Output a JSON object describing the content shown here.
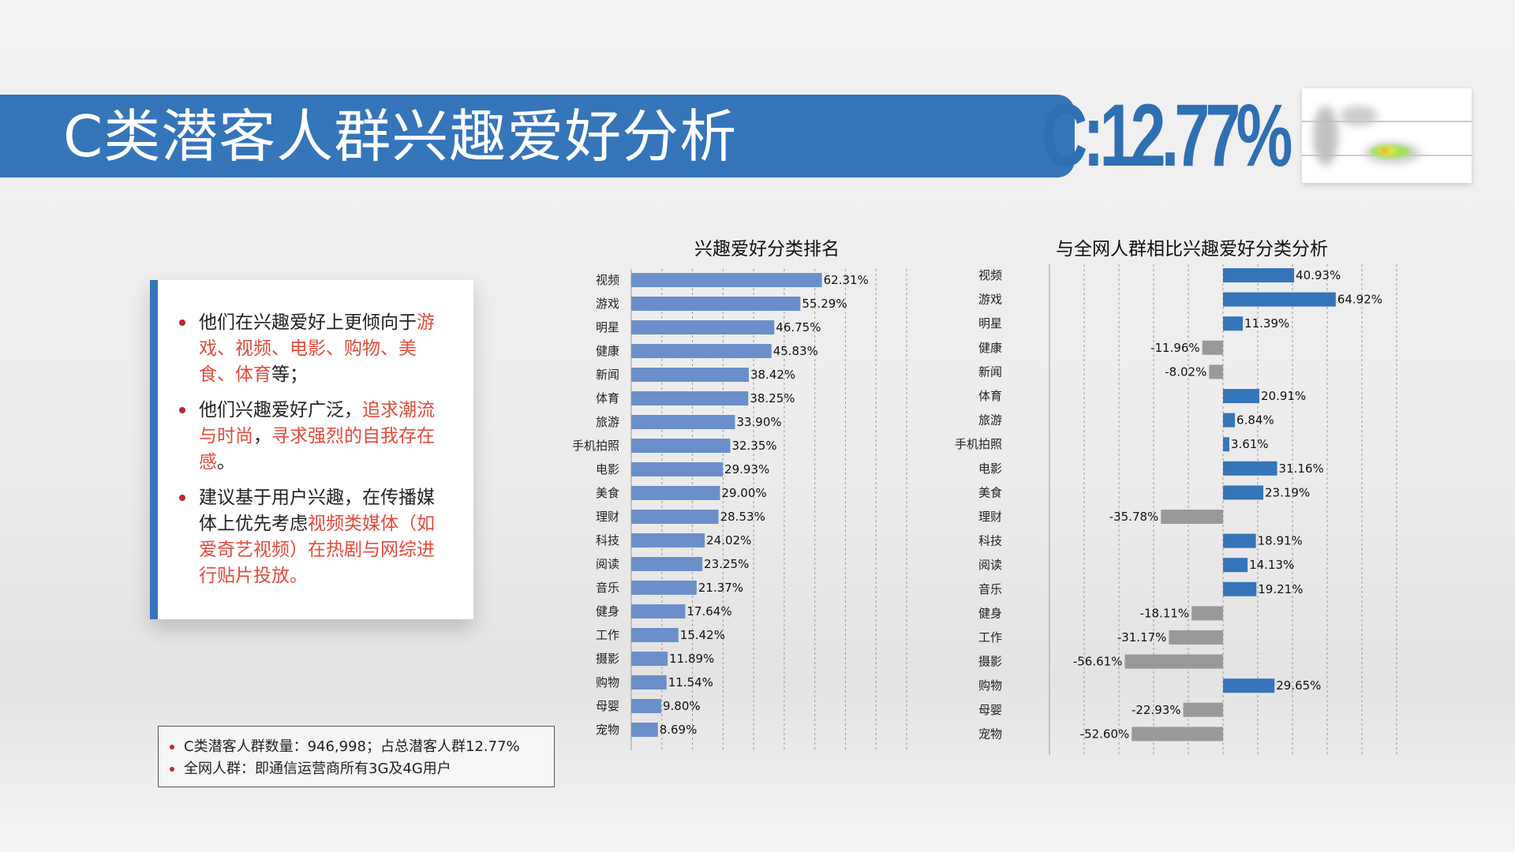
{
  "header": {
    "title": "C类潜客人群兴趣爱好分析",
    "stat": "C:12.77%"
  },
  "panel": {
    "bullets": [
      {
        "segments": [
          {
            "text": "他们在兴趣爱好上更倾向于",
            "color": "#222222"
          },
          {
            "text": "游戏、视频、电影、购物、美食、体育",
            "color": "#e04b3c"
          },
          {
            "text": "等；",
            "color": "#222222"
          }
        ]
      },
      {
        "segments": [
          {
            "text": "他们兴趣爱好广泛，",
            "color": "#222222"
          },
          {
            "text": "追求潮流与时尚",
            "color": "#e04b3c"
          },
          {
            "text": "，",
            "color": "#222222"
          },
          {
            "text": "寻求强烈的自我存在感",
            "color": "#e04b3c"
          },
          {
            "text": "。",
            "color": "#222222"
          }
        ]
      },
      {
        "segments": [
          {
            "text": "建议基于用户兴趣，在传播媒体上优先考虑",
            "color": "#222222"
          },
          {
            "text": "视频类媒体（如爱奇艺视频）在热剧与网综进行贴片投放。",
            "color": "#e04b3c"
          }
        ]
      }
    ]
  },
  "notes": [
    "C类潜客人群数量：946,998；占总潜客人群12.77%",
    "全网人群：即通信运营商所有3G及4G用户"
  ],
  "colors": {
    "brand_blue": "#3575b9",
    "bar_blue": "#6b8fca",
    "bar_blue2": "#3575b9",
    "bar_gray": "#999999",
    "accent_red": "#e04b3c"
  },
  "chart_data": [
    {
      "type": "bar",
      "orientation": "horizontal",
      "title": "兴趣爱好分类排名",
      "categories": [
        "视频",
        "游戏",
        "明星",
        "健康",
        "新闻",
        "体育",
        "旅游",
        "手机拍照",
        "电影",
        "美食",
        "理财",
        "科技",
        "阅读",
        "音乐",
        "健身",
        "工作",
        "摄影",
        "购物",
        "母婴",
        "宠物"
      ],
      "values": [
        62.31,
        55.29,
        46.75,
        45.83,
        38.42,
        38.25,
        33.9,
        32.35,
        29.93,
        29.0,
        28.53,
        24.02,
        23.25,
        21.37,
        17.64,
        15.42,
        11.89,
        11.54,
        9.8,
        8.69
      ],
      "labels": [
        "62.31%",
        "55.29%",
        "46.75%",
        "45.83%",
        "38.42%",
        "38.25%",
        "33.90%",
        "32.35%",
        "29.93%",
        "29.00%",
        "28.53%",
        "24.02%",
        "23.25%",
        "21.37%",
        "17.64%",
        "15.42%",
        "11.89%",
        "11.54%",
        "9.80%",
        "8.69%"
      ],
      "xlim": [
        0,
        90
      ],
      "grid": true
    },
    {
      "type": "bar",
      "orientation": "horizontal",
      "title": "与全网人群相比兴趣爱好分类分析",
      "categories": [
        "视频",
        "游戏",
        "明星",
        "健康",
        "新闻",
        "体育",
        "旅游",
        "手机拍照",
        "电影",
        "美食",
        "理财",
        "科技",
        "阅读",
        "音乐",
        "健身",
        "工作",
        "摄影",
        "购物",
        "母婴",
        "宠物"
      ],
      "values": [
        40.93,
        64.92,
        11.39,
        -11.96,
        -8.02,
        20.91,
        6.84,
        3.61,
        31.16,
        23.19,
        -35.78,
        18.91,
        14.13,
        19.21,
        -18.11,
        -31.17,
        -56.61,
        29.65,
        -22.93,
        -52.6
      ],
      "labels": [
        "40.93%",
        "64.92%",
        "11.39%",
        "-11.96%",
        "-8.02%",
        "20.91%",
        "6.84%",
        "3.61%",
        "31.16%",
        "23.19%",
        "-35.78%",
        "18.91%",
        "14.13%",
        "19.21%",
        "-18.11%",
        "-31.17%",
        "-56.61%",
        "29.65%",
        "-22.93%",
        "-52.60%"
      ],
      "xlim": [
        -100,
        100
      ],
      "grid": true
    }
  ]
}
